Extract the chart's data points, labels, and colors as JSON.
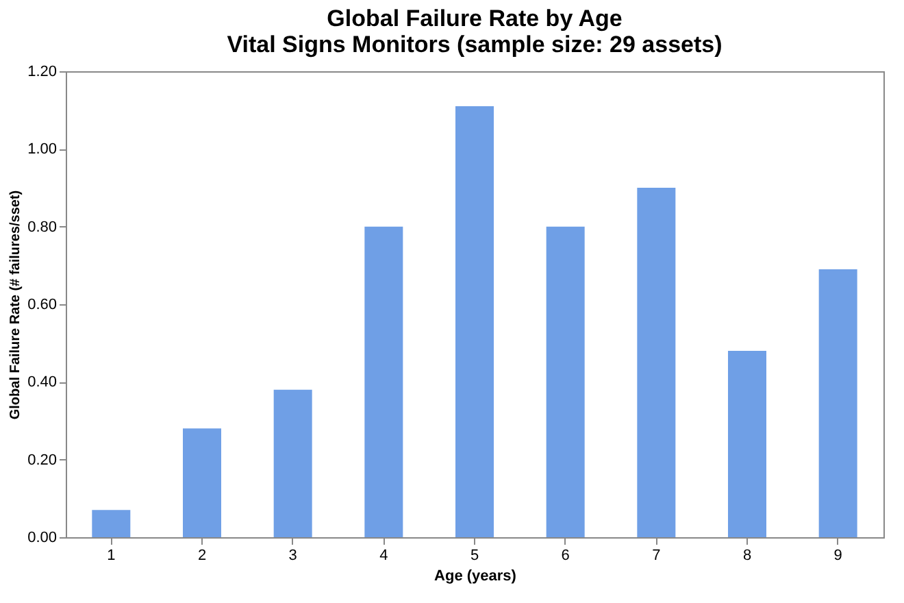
{
  "chart_data": {
    "type": "bar",
    "title": "Global Failure Rate by Age",
    "subtitle": "Vital Signs Monitors (sample size: 29 assets)",
    "xlabel": "Age (years)",
    "ylabel": "Global Failure Rate (# failures/sset)",
    "categories": [
      "1",
      "2",
      "3",
      "4",
      "5",
      "6",
      "7",
      "8",
      "9"
    ],
    "values": [
      0.07,
      0.28,
      0.38,
      0.8,
      1.11,
      0.8,
      0.9,
      0.48,
      0.69
    ],
    "color": "#6f9fe6",
    "ylim": [
      0,
      1.2
    ],
    "yticks": [
      {
        "value": 0,
        "label": "0.00"
      },
      {
        "value": 0.2,
        "label": "0.20"
      },
      {
        "value": 0.4,
        "label": "0.40"
      },
      {
        "value": 0.6,
        "label": "0.60"
      },
      {
        "value": 0.8,
        "label": "0.80"
      },
      {
        "value": 1.0,
        "label": "1.00"
      },
      {
        "value": 1.2,
        "label": "1.20"
      }
    ],
    "grid": false
  }
}
